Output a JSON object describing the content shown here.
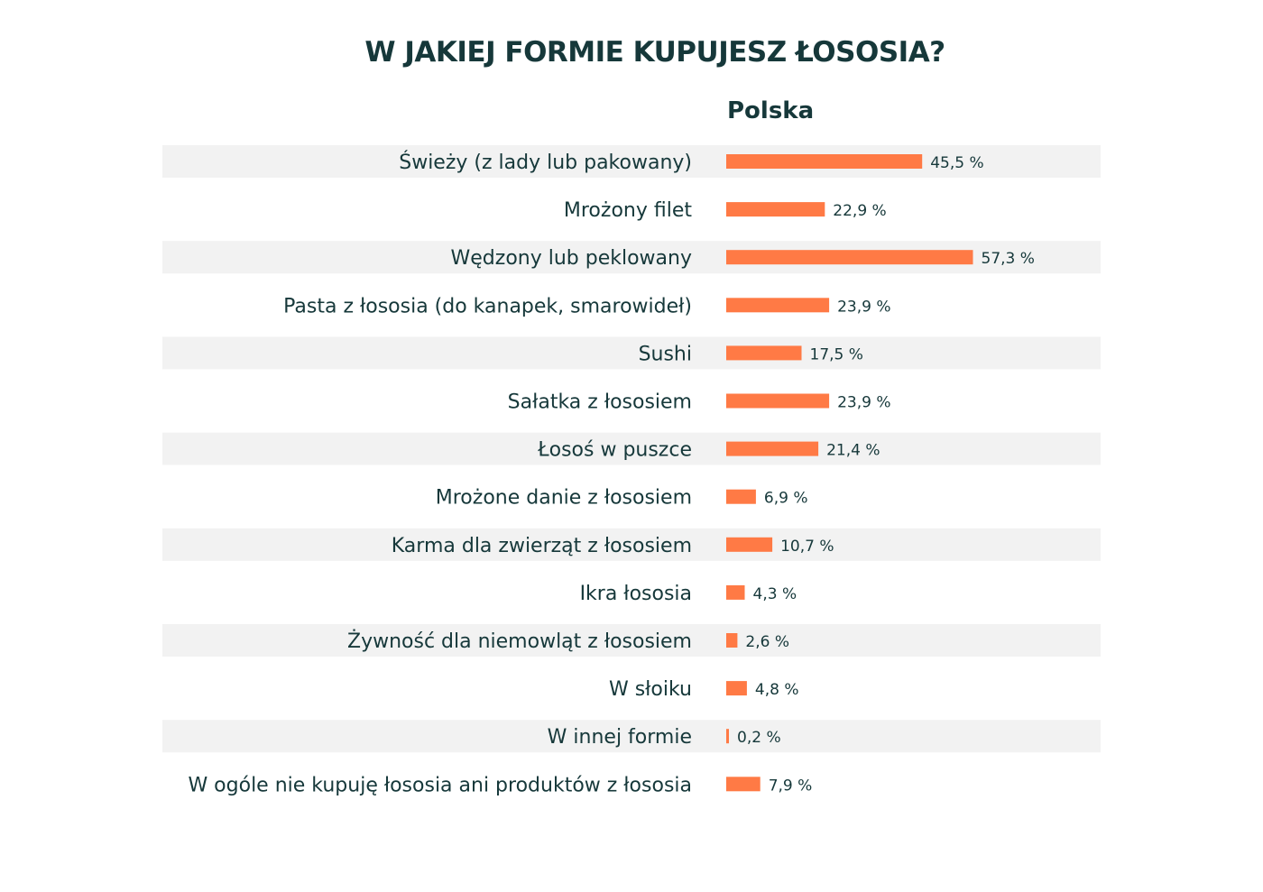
{
  "chart_data": {
    "type": "bar",
    "orientation": "horizontal",
    "title": "W JAKIEJ FORMIE KUPUJESZ ŁOSOSIA?",
    "series": [
      {
        "name": "Polska",
        "values": [
          45.5,
          22.9,
          57.3,
          23.9,
          17.5,
          23.9,
          21.4,
          6.9,
          10.7,
          4.3,
          2.6,
          4.8,
          0.2,
          7.9
        ],
        "labels": [
          "45,5 %",
          "22,9 %",
          "57,3 %",
          "23,9 %",
          "17,5 %",
          "23,9 %",
          "21,4 %",
          "6,9 %",
          "10,7 %",
          "4,3 %",
          "2,6 %",
          "4,8 %",
          "0,2 %",
          "7,9 %"
        ]
      }
    ],
    "categories": [
      "Świeży (z lady lub pakowany)",
      "Mrożony filet",
      "Wędzony lub peklowany",
      "Pasta z łososia (do kanapek, smarowideł)",
      "Sushi",
      "Sałatka z łososiem",
      "Łosoś w puszce",
      "Mrożone danie z łososiem",
      "Karma dla zwierząt z łososiem",
      "Ikra  łososia",
      "Żywność dla niemowląt z łososiem",
      "W słoiku",
      "W innej formie",
      "W ogóle nie kupuję łososia ani produktów z łososia"
    ],
    "xlim": [
      0,
      60
    ],
    "grid": false,
    "legend": "none",
    "colors": {
      "bar": "#ff7a45",
      "stripe": "#f2f2f2",
      "text": "#16383a"
    }
  }
}
